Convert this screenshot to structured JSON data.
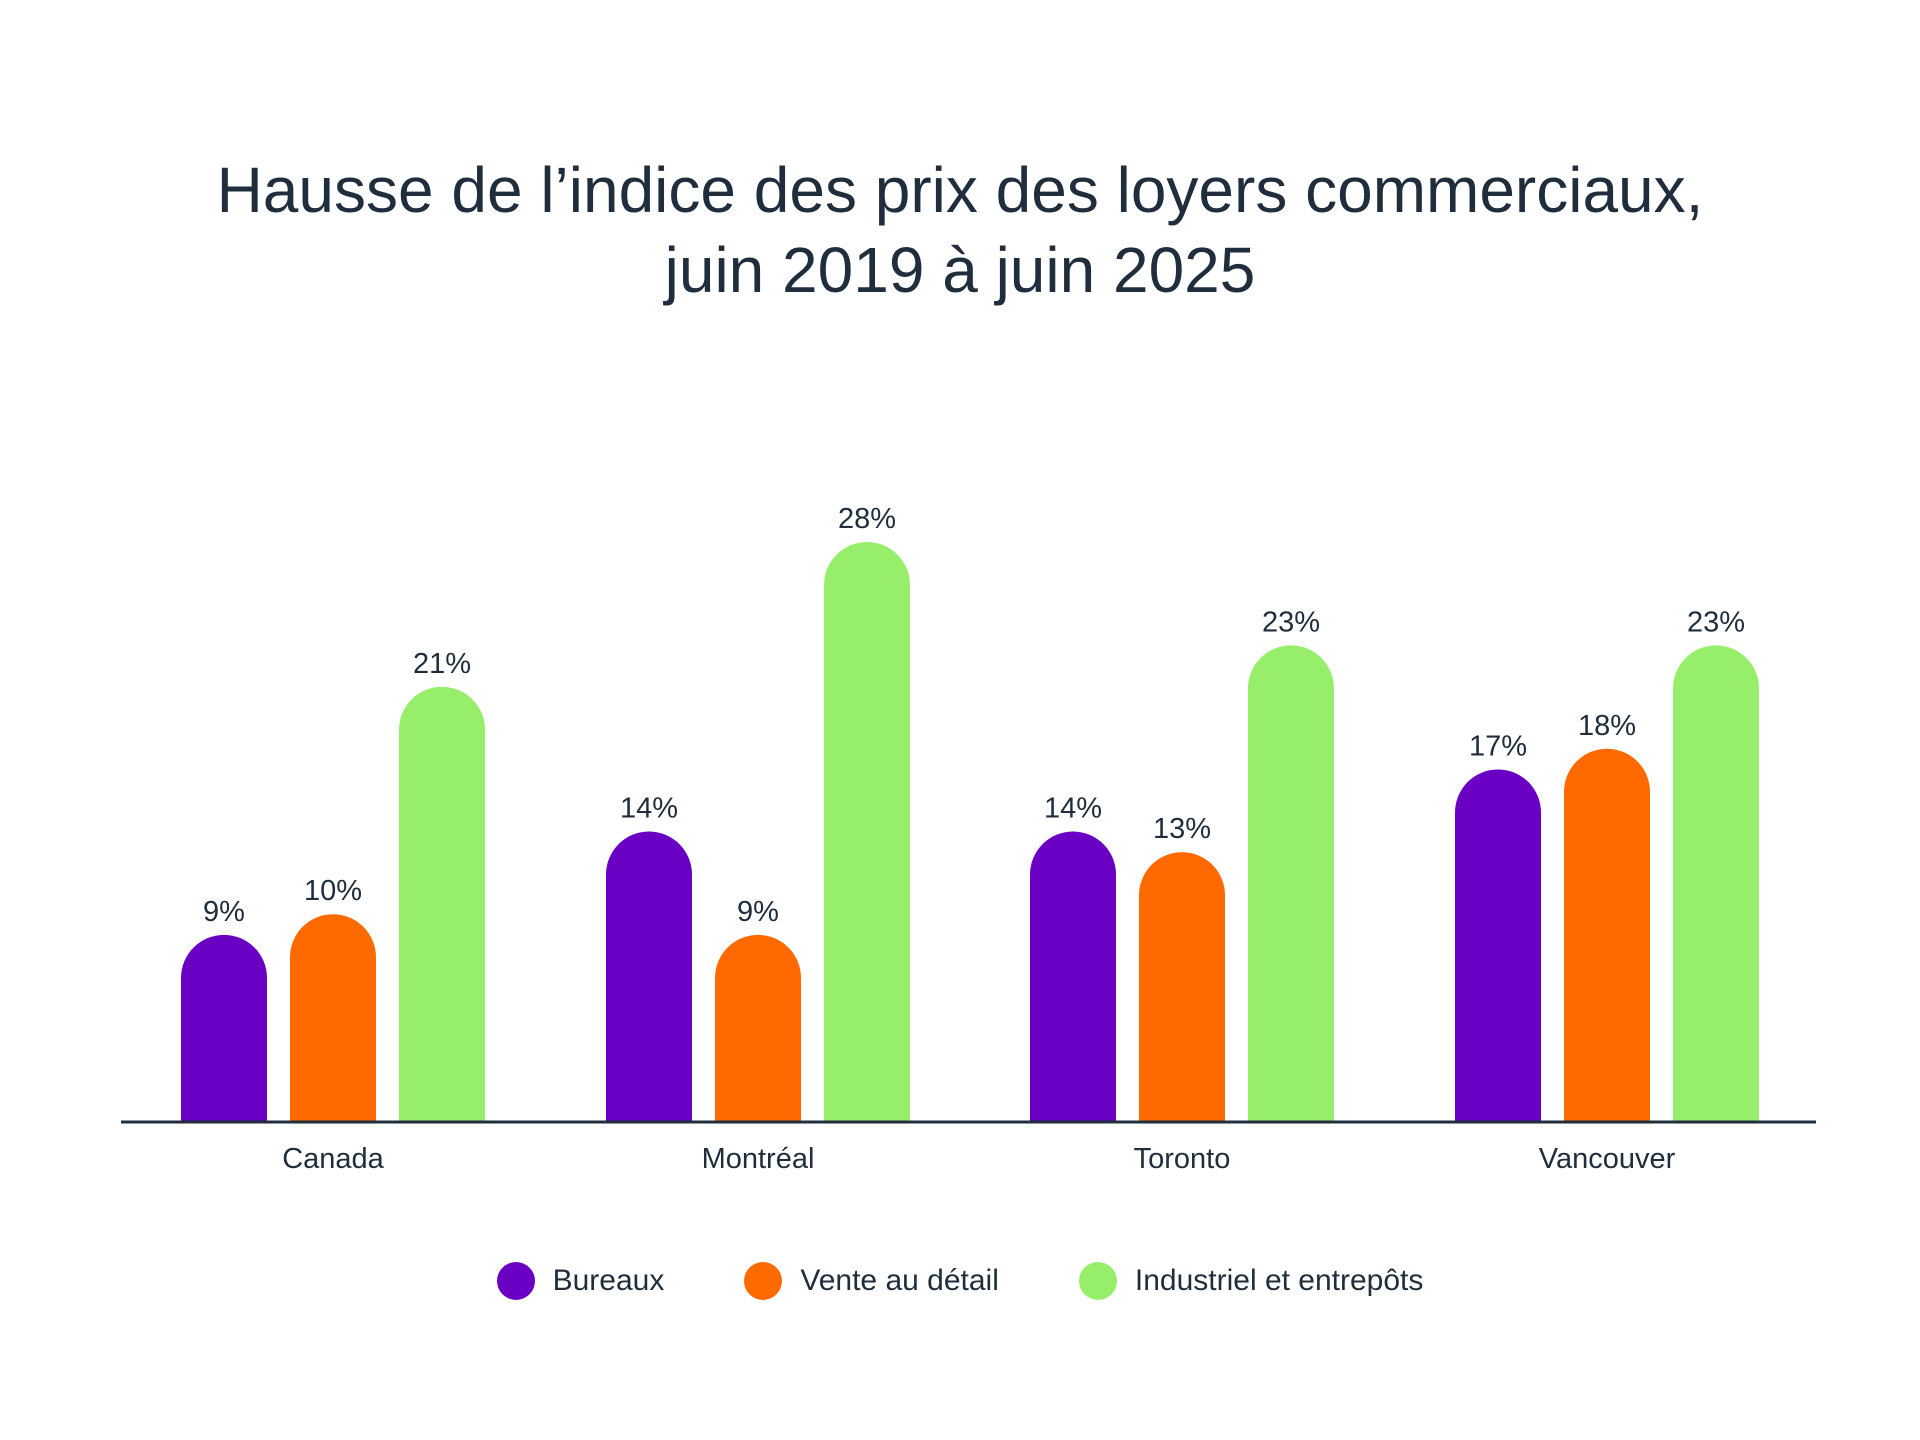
{
  "chart_data": {
    "type": "bar",
    "title_lines": [
      "Hausse de l’indice des prix des loyers commerciaux,",
      "juin 2019 à juin 2025"
    ],
    "categories": [
      "Canada",
      "Montréal",
      "Toronto",
      "Vancouver"
    ],
    "series": [
      {
        "name": "Bureaux",
        "color": "#6a00c4",
        "values": [
          9,
          14,
          14,
          17
        ],
        "labels": [
          "9%",
          "14%",
          "14%",
          "17%"
        ]
      },
      {
        "name": "Vente au détail",
        "color": "#ff6a00",
        "values": [
          10,
          9,
          13,
          18
        ],
        "labels": [
          "10%",
          "9%",
          "13%",
          "18%"
        ]
      },
      {
        "name": "Industriel et entrepôts",
        "color": "#96ee6a",
        "values": [
          21,
          28,
          23,
          23
        ],
        "labels": [
          "21%",
          "28%",
          "23%",
          "23%"
        ]
      }
    ],
    "ylim": [
      0,
      28
    ],
    "grid": false,
    "legend_position": "bottom-center",
    "axis_color": "#1f2d3d"
  }
}
